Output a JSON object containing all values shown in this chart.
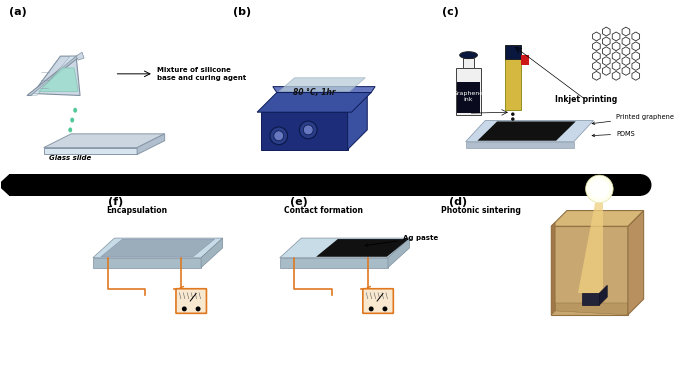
{
  "bg_color": "#ffffff",
  "panel_labels": [
    "(a)",
    "(b)",
    "(c)",
    "(f)",
    "(e)",
    "(d)"
  ],
  "panel_titles_bottom": [
    "Encapsulation",
    "Contact formation",
    "Photonic sintering"
  ],
  "text_a1": "Mixture of silicone",
  "text_a2": "base and curing agent",
  "text_a3": "Glass slide",
  "text_b1": "80 °C, 1hr",
  "text_c1": "Inkjet printing",
  "text_c2": "Graphene\nink",
  "text_c3": "Printed graphene",
  "text_c4": "PDMS",
  "text_e1": "Ag paste",
  "arrow_color": "#E07820",
  "dark_blue": "#1e2d7a",
  "mid_blue": "#3a50a0",
  "light_blue": "#6878c0",
  "teal": "#50c898",
  "yellow_pen": "#d4b840",
  "silver": "#b0b8c8",
  "light_silver": "#c8d4e0"
}
